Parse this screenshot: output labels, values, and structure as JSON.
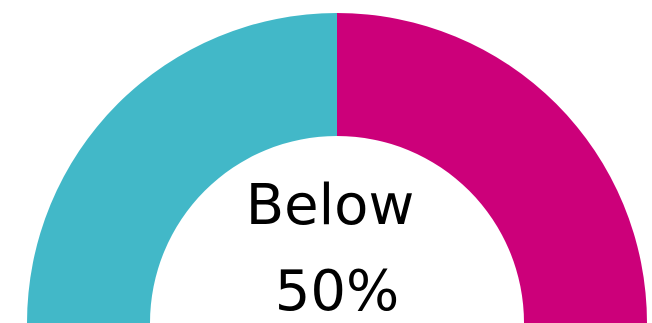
{
  "chart_data": {
    "type": "pie",
    "half_donut": true,
    "categories": [
      null,
      null
    ],
    "values": [
      50,
      50
    ],
    "colors": [
      "#42b8c8",
      "#cc007a"
    ],
    "center_label": [
      "Below",
      "50%"
    ]
  }
}
